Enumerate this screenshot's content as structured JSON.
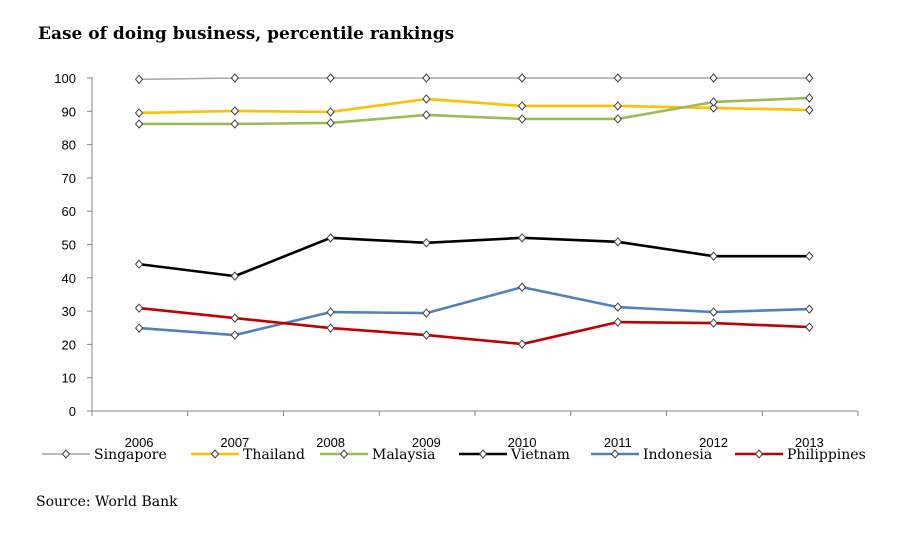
{
  "chart_data": {
    "type": "line",
    "title": "Ease of doing business, percentile rankings",
    "xlabel": "",
    "ylabel": "",
    "ylim": [
      0,
      100
    ],
    "yticks": [
      "0",
      "10",
      "20",
      "30",
      "40",
      "50",
      "60",
      "70",
      "80",
      "90",
      "100"
    ],
    "categories": [
      "2006",
      "2007",
      "2008",
      "2009",
      "2010",
      "2011",
      "2012",
      "2013"
    ],
    "legend_position": "bottom",
    "grid": false,
    "series": [
      {
        "name": "Singapore",
        "color": "#a6a6a6",
        "values": [
          99.6,
          100,
          100,
          100,
          100,
          100,
          100,
          100
        ]
      },
      {
        "name": "Thailand",
        "color": "#ffc000",
        "values": [
          89.5,
          90.1,
          89.8,
          93.7,
          91.6,
          91.6,
          91.0,
          90.4
        ]
      },
      {
        "name": "Malaysia",
        "color": "#9bbb59",
        "values": [
          86.2,
          86.2,
          86.5,
          88.9,
          87.7,
          87.7,
          92.8,
          94.0
        ]
      },
      {
        "name": "Vietnam",
        "color": "#000000",
        "values": [
          44.1,
          40.5,
          52.0,
          50.5,
          52.0,
          50.8,
          46.5,
          46.5
        ]
      },
      {
        "name": "Indonesia",
        "color": "#4f81bd",
        "values": [
          24.9,
          22.8,
          29.7,
          29.4,
          37.2,
          31.2,
          29.7,
          30.6
        ]
      },
      {
        "name": "Philippines",
        "color": "#c00000",
        "values": [
          30.9,
          27.9,
          24.9,
          22.8,
          20.1,
          26.7,
          26.4,
          25.2
        ]
      }
    ]
  },
  "source": "Source: World Bank"
}
